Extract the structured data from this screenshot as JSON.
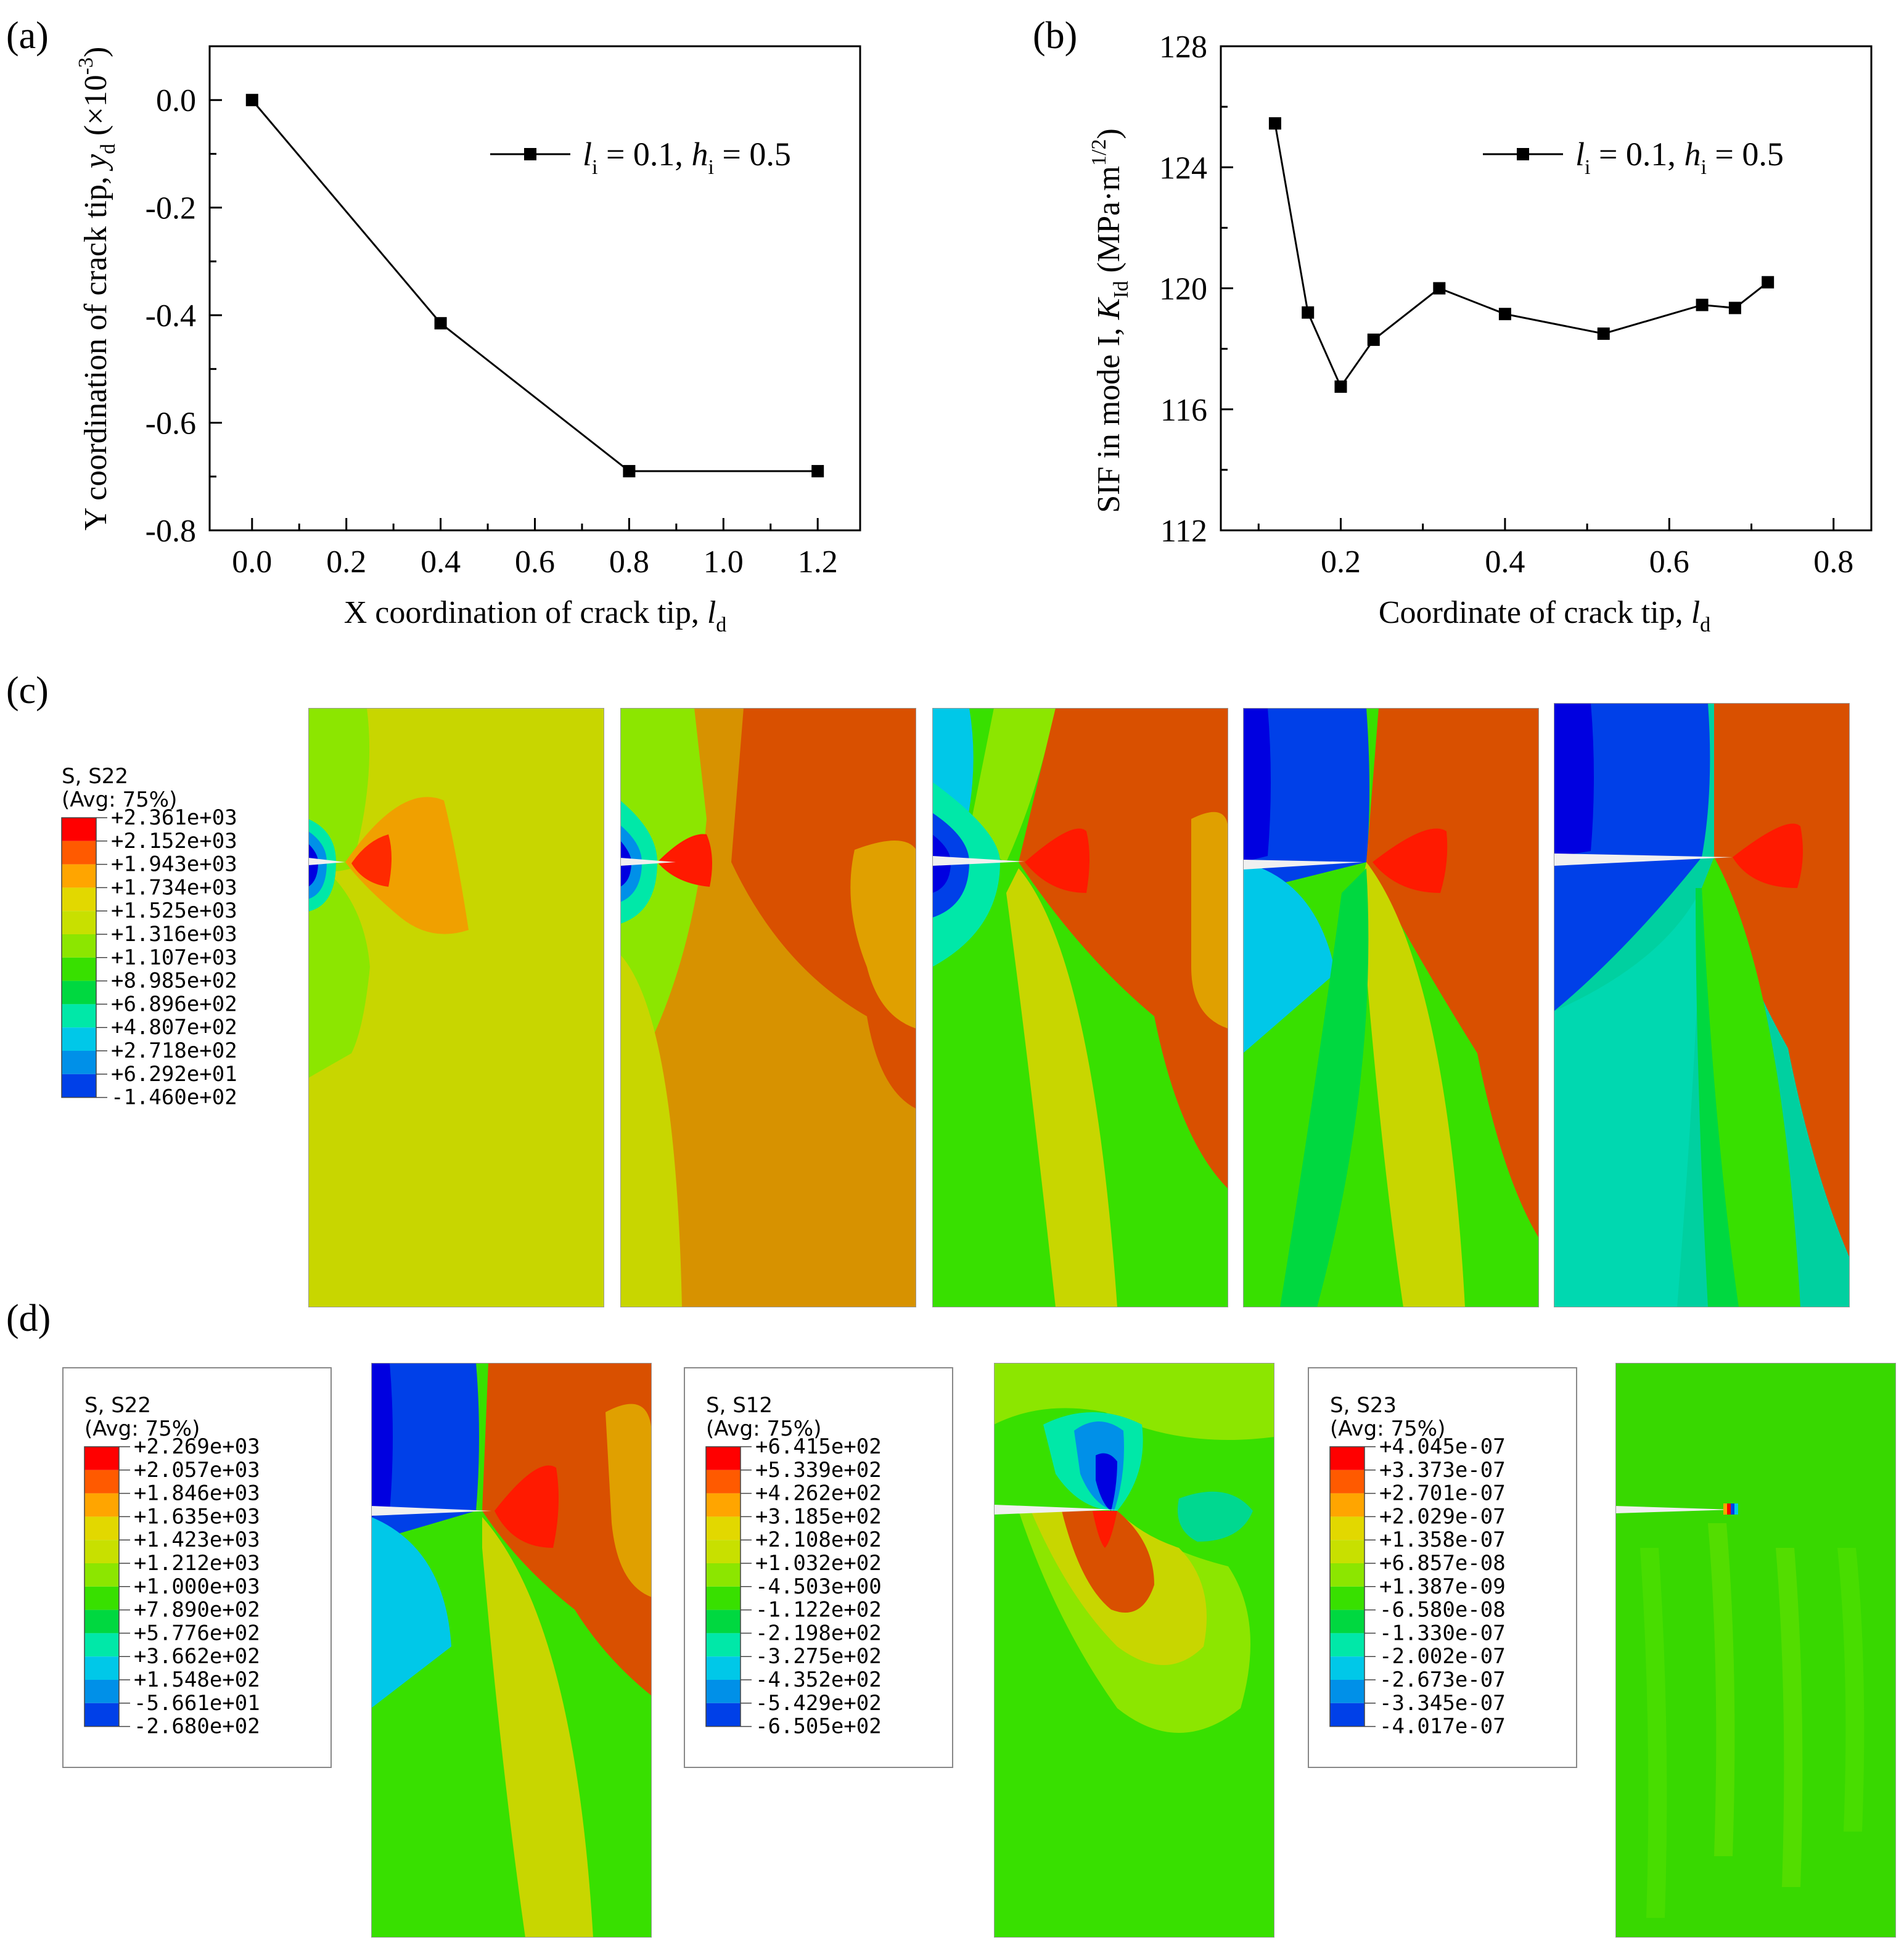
{
  "figure": {
    "panel_labels": [
      "(a)",
      "(b)",
      "(c)",
      "(d)"
    ]
  },
  "chart_data": [
    {
      "id": "a",
      "type": "line",
      "title": "",
      "xlabel": "X coordination of crack tip, ",
      "xlabel_italic": "l",
      "xlabel_sub": "d",
      "ylabel": "Y coordination of crack tip, ",
      "ylabel_italic": "y",
      "ylabel_sub": "d",
      "ylabel_unit": " (×10",
      "ylabel_sup": "-3",
      "ylabel_close": ")",
      "xlim": [
        -0.09,
        1.29
      ],
      "ylim": [
        -0.8,
        0.1
      ],
      "xticks": [
        "0.0",
        "0.2",
        "0.4",
        "0.6",
        "0.8",
        "1.0",
        "1.2"
      ],
      "xtick_values": [
        0.0,
        0.2,
        0.4,
        0.6,
        0.8,
        1.0,
        1.2
      ],
      "yticks": [
        "0.0",
        "-0.2",
        "-0.4",
        "-0.6",
        "-0.8"
      ],
      "ytick_values": [
        0.0,
        -0.2,
        -0.4,
        -0.6,
        -0.8
      ],
      "legend": {
        "placement": "top-right",
        "l_sym": "l",
        "l_sub": "i",
        "l_val": " = 0.1, ",
        "h_sym": "h",
        "h_sub": "i",
        "h_val": " = 0.5"
      },
      "series": [
        {
          "name": "li = 0.1, hi = 0.5",
          "x": [
            0.0,
            0.4,
            0.8,
            1.2
          ],
          "y": [
            0.0,
            -0.415,
            -0.69,
            -0.69
          ]
        }
      ]
    },
    {
      "id": "b",
      "type": "line",
      "title": "",
      "xlabel": "Coordinate of crack tip, ",
      "xlabel_italic": "l",
      "xlabel_sub": "d",
      "ylabel": "SIF in mode I, ",
      "ylabel_italic": "K",
      "ylabel_sub": "Id",
      "ylabel_unit": " (MPa·m",
      "ylabel_sup": "1/2",
      "ylabel_close": ")",
      "xlim": [
        0.054,
        0.846
      ],
      "ylim": [
        112,
        128
      ],
      "xticks": [
        "0.2",
        "0.4",
        "0.6",
        "0.8"
      ],
      "xtick_values": [
        0.2,
        0.4,
        0.6,
        0.8
      ],
      "yticks": [
        "128",
        "124",
        "120",
        "116",
        "112"
      ],
      "ytick_values": [
        128,
        124,
        120,
        116,
        112
      ],
      "legend": {
        "placement": "top-right",
        "l_sym": "l",
        "l_sub": "i",
        "l_val": " = 0.1, ",
        "h_sym": "h",
        "h_sub": "i",
        "h_val": " = 0.5"
      },
      "series": [
        {
          "name": "li = 0.1, hi = 0.5",
          "x": [
            0.12,
            0.16,
            0.2,
            0.24,
            0.32,
            0.4,
            0.52,
            0.64,
            0.68,
            0.72
          ],
          "y": [
            125.45,
            119.2,
            116.75,
            118.3,
            120.0,
            119.15,
            118.5,
            119.45,
            119.35,
            120.2
          ]
        }
      ]
    }
  ],
  "contour_legends": [
    {
      "id": "c-s22",
      "title": "S, S22",
      "subtitle": "(Avg: 75%)",
      "values": [
        "+2.361e+03",
        "+2.152e+03",
        "+1.943e+03",
        "+1.734e+03",
        "+1.525e+03",
        "+1.316e+03",
        "+1.107e+03",
        "+8.985e+02",
        "+6.896e+02",
        "+4.807e+02",
        "+2.718e+02",
        "+6.292e+01",
        "-1.460e+02"
      ]
    },
    {
      "id": "d-s22",
      "title": "S, S22",
      "subtitle": "(Avg: 75%)",
      "values": [
        "+2.269e+03",
        "+2.057e+03",
        "+1.846e+03",
        "+1.635e+03",
        "+1.423e+03",
        "+1.212e+03",
        "+1.000e+03",
        "+7.890e+02",
        "+5.776e+02",
        "+3.662e+02",
        "+1.548e+02",
        "-5.661e+01",
        "-2.680e+02"
      ]
    },
    {
      "id": "d-s12",
      "title": "S, S12",
      "subtitle": "(Avg: 75%)",
      "values": [
        "+6.415e+02",
        "+5.339e+02",
        "+4.262e+02",
        "+3.185e+02",
        "+2.108e+02",
        "+1.032e+02",
        "-4.503e+00",
        "-1.122e+02",
        "-2.198e+02",
        "-3.275e+02",
        "-4.352e+02",
        "-5.429e+02",
        "-6.505e+02"
      ]
    },
    {
      "id": "d-s23",
      "title": "S, S23",
      "subtitle": "(Avg: 75%)",
      "values": [
        "+4.045e-07",
        "+3.373e-07",
        "+2.701e-07",
        "+2.029e-07",
        "+1.358e-07",
        "+6.857e-08",
        "+1.387e-09",
        "-6.580e-08",
        "-1.330e-07",
        "-2.002e-07",
        "-2.673e-07",
        "-3.345e-07",
        "-4.017e-07"
      ]
    }
  ],
  "palette": [
    "#ff0000",
    "#ff5a00",
    "#ffa500",
    "#e2d800",
    "#c8e000",
    "#8ce600",
    "#38e000",
    "#00d840",
    "#00e8a8",
    "#00c8e8",
    "#0090e8",
    "#0040e8",
    "#0000e0"
  ]
}
